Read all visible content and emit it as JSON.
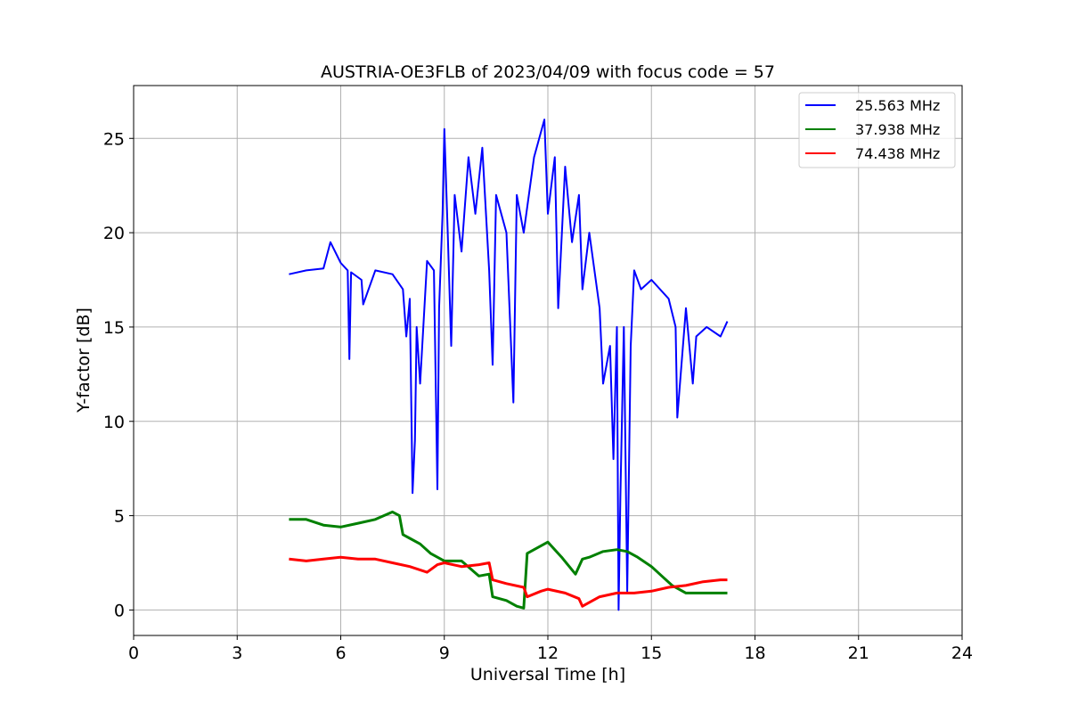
{
  "chart_data": {
    "type": "line",
    "title": "AUSTRIA-OE3FLB of 2023/04/09 with focus code = 57",
    "xlabel": "Universal Time [h]",
    "ylabel": "Y-factor [dB]",
    "xlim": [
      0,
      24
    ],
    "ylim": [
      -1.35,
      27.8
    ],
    "xticks": [
      0,
      3,
      6,
      9,
      12,
      15,
      18,
      21,
      24
    ],
    "yticks": [
      0,
      5,
      10,
      15,
      20,
      25
    ],
    "grid": true,
    "legend_position": "top-right",
    "series": [
      {
        "name": "25.563 MHz",
        "color": "#0000ff",
        "x": [
          4.5,
          5.0,
          5.5,
          5.7,
          6.0,
          6.2,
          6.25,
          6.3,
          6.6,
          6.65,
          7.0,
          7.5,
          7.8,
          7.9,
          8.0,
          8.08,
          8.15,
          8.2,
          8.3,
          8.5,
          8.7,
          8.8,
          8.85,
          8.95,
          9.0,
          9.1,
          9.2,
          9.3,
          9.5,
          9.7,
          9.9,
          10.1,
          10.3,
          10.4,
          10.5,
          10.8,
          11.0,
          11.1,
          11.3,
          11.6,
          11.9,
          12.0,
          12.2,
          12.3,
          12.5,
          12.7,
          12.9,
          13.0,
          13.2,
          13.5,
          13.6,
          13.8,
          13.9,
          14.0,
          14.05,
          14.1,
          14.2,
          14.3,
          14.4,
          14.5,
          14.7,
          15.0,
          15.5,
          15.7,
          15.75,
          16.0,
          16.2,
          16.3,
          16.6,
          17.0,
          17.2
        ],
        "y": [
          17.8,
          18.0,
          18.1,
          19.5,
          18.4,
          18.0,
          13.3,
          17.9,
          17.5,
          16.2,
          18.0,
          17.8,
          17.0,
          14.5,
          16.5,
          6.2,
          9.0,
          15.0,
          12.0,
          18.5,
          18.0,
          6.4,
          16.0,
          21.0,
          25.5,
          20.0,
          14.0,
          22.0,
          19.0,
          24.0,
          21.0,
          24.5,
          18.0,
          13.0,
          22.0,
          20.0,
          11.0,
          22.0,
          20.0,
          24.0,
          26.0,
          21.0,
          24.0,
          16.0,
          23.5,
          19.5,
          22.0,
          17.0,
          20.0,
          16.0,
          12.0,
          14.0,
          8.0,
          15.0,
          0.0,
          6.0,
          15.0,
          1.0,
          14.0,
          18.0,
          17.0,
          17.5,
          16.5,
          15.0,
          10.2,
          16.0,
          12.0,
          14.5,
          15.0,
          14.5,
          15.3
        ]
      },
      {
        "name": "37.938 MHz",
        "color": "#008000",
        "x": [
          4.5,
          5.0,
          5.5,
          6.0,
          6.5,
          7.0,
          7.5,
          7.7,
          7.8,
          8.0,
          8.3,
          8.6,
          9.0,
          9.5,
          10.0,
          10.3,
          10.4,
          10.8,
          11.1,
          11.3,
          11.4,
          11.6,
          12.0,
          12.4,
          12.8,
          13.0,
          13.2,
          13.6,
          14.0,
          14.3,
          14.6,
          15.0,
          15.3,
          15.6,
          16.0,
          16.5,
          17.0,
          17.2
        ],
        "y": [
          4.8,
          4.8,
          4.5,
          4.4,
          4.6,
          4.8,
          5.2,
          5.0,
          4.0,
          3.8,
          3.5,
          3.0,
          2.6,
          2.6,
          1.8,
          1.9,
          0.7,
          0.5,
          0.2,
          0.1,
          3.0,
          3.2,
          3.6,
          2.8,
          1.9,
          2.7,
          2.8,
          3.1,
          3.2,
          3.1,
          2.8,
          2.3,
          1.8,
          1.3,
          0.9,
          0.9,
          0.9,
          0.9
        ]
      },
      {
        "name": "74.438 MHz",
        "color": "#ff0000",
        "x": [
          4.5,
          5.0,
          5.5,
          6.0,
          6.5,
          7.0,
          7.5,
          8.0,
          8.5,
          8.8,
          9.0,
          9.5,
          10.0,
          10.3,
          10.4,
          10.8,
          11.3,
          11.4,
          11.8,
          12.0,
          12.5,
          12.9,
          13.0,
          13.5,
          14.0,
          14.5,
          15.0,
          15.5,
          16.0,
          16.5,
          17.0,
          17.2
        ],
        "y": [
          2.7,
          2.6,
          2.7,
          2.8,
          2.7,
          2.7,
          2.5,
          2.3,
          2.0,
          2.4,
          2.5,
          2.3,
          2.4,
          2.5,
          1.6,
          1.4,
          1.2,
          0.7,
          1.0,
          1.1,
          0.9,
          0.6,
          0.2,
          0.7,
          0.9,
          0.9,
          1.0,
          1.2,
          1.3,
          1.5,
          1.6,
          1.6
        ]
      }
    ]
  }
}
